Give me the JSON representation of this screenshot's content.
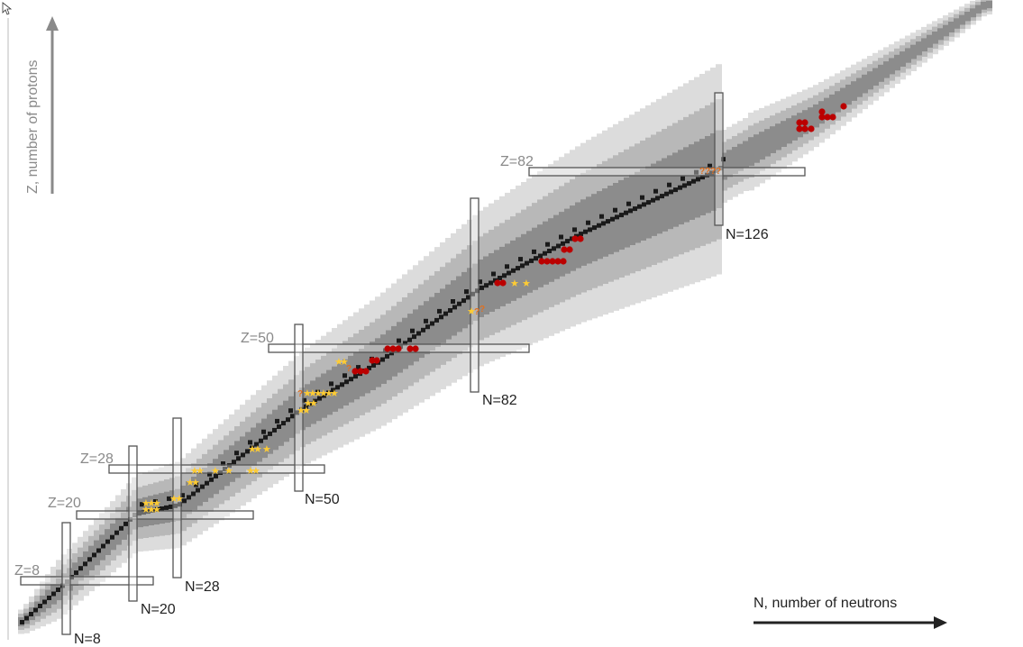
{
  "axes": {
    "z_title": "Z, number of protons",
    "n_title": "N, number of neutrons"
  },
  "magic": {
    "z": [
      {
        "label": "Z=8"
      },
      {
        "label": "Z=20"
      },
      {
        "label": "Z=28"
      },
      {
        "label": "Z=50"
      },
      {
        "label": "Z=82"
      }
    ],
    "n": [
      {
        "label": "N=8"
      },
      {
        "label": "N=20"
      },
      {
        "label": "N=28"
      },
      {
        "label": "N=50"
      },
      {
        "label": "N=82"
      },
      {
        "label": "N=126"
      }
    ]
  },
  "markers": {
    "star_color": "#ffcc33",
    "question_color": "#e07020",
    "dot_color": "#bb0000",
    "question_glyph": "?"
  },
  "colors": {
    "stable": "#1a1a1a",
    "band_light": "#dcdcdc",
    "band_mid": "#b8b8b8",
    "band_dark": "#8c8c8c",
    "axis": "#777777",
    "magic_box": "#555555"
  }
}
